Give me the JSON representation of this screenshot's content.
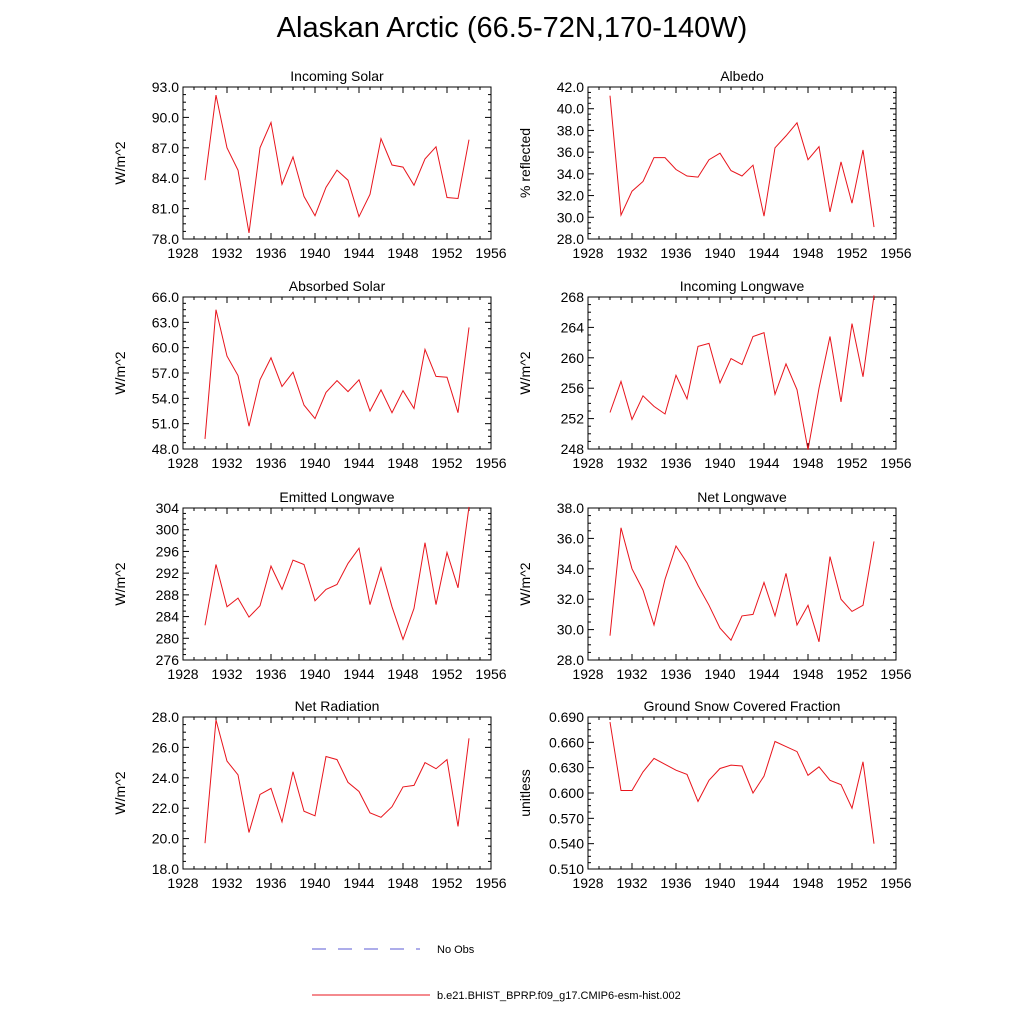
{
  "page": {
    "title": "Alaskan Arctic (66.5-72N,170-140W)"
  },
  "colors": {
    "model_line": "#e8141c",
    "obs_line": "#5b5bd6",
    "axis": "#000000"
  },
  "legend": {
    "obs_label": "No Obs",
    "model_label": "b.e21.BHIST_BPRP.f09_g17.CMIP6-esm-hist.002"
  },
  "chart_data": [
    {
      "type": "line",
      "title": "Incoming Solar",
      "ylabel": "W/m^2",
      "xlim": [
        1928,
        1956
      ],
      "ylim": [
        78,
        93
      ],
      "yticks": [
        "78.0",
        "81.0",
        "84.0",
        "87.0",
        "90.0",
        "93.0"
      ],
      "xticks": [
        "1928",
        "1932",
        "1936",
        "1940",
        "1944",
        "1948",
        "1952",
        "1956"
      ],
      "x": [
        1930,
        1931,
        1932,
        1933,
        1934,
        1935,
        1936,
        1937,
        1938,
        1939,
        1940,
        1941,
        1942,
        1943,
        1944,
        1945,
        1946,
        1947,
        1948,
        1949,
        1950,
        1951,
        1952,
        1953,
        1954
      ],
      "series": [
        {
          "name": "b.e21.BHIST_BPRP.f09_g17.CMIP6-esm-hist.002",
          "values": [
            83.8,
            92.2,
            87.0,
            84.8,
            78.6,
            87.0,
            89.5,
            83.4,
            86.1,
            82.2,
            80.3,
            83.1,
            84.8,
            83.8,
            80.2,
            82.4,
            87.9,
            85.3,
            85.1,
            83.3,
            85.9,
            87.1,
            82.1,
            82.0,
            87.8
          ]
        }
      ]
    },
    {
      "type": "line",
      "title": "Albedo",
      "ylabel": "% reflected",
      "xlim": [
        1928,
        1956
      ],
      "ylim": [
        28,
        42
      ],
      "yticks": [
        "28.0",
        "30.0",
        "32.0",
        "34.0",
        "36.0",
        "38.0",
        "40.0",
        "42.0"
      ],
      "xticks": [
        "1928",
        "1932",
        "1936",
        "1940",
        "1944",
        "1948",
        "1952",
        "1956"
      ],
      "x": [
        1930,
        1931,
        1932,
        1933,
        1934,
        1935,
        1936,
        1937,
        1938,
        1939,
        1940,
        1941,
        1942,
        1943,
        1944,
        1945,
        1946,
        1947,
        1948,
        1949,
        1950,
        1951,
        1952,
        1953,
        1954
      ],
      "series": [
        {
          "name": "b.e21.BHIST_BPRP.f09_g17.CMIP6-esm-hist.002",
          "values": [
            41.2,
            30.2,
            32.4,
            33.3,
            35.5,
            35.5,
            34.4,
            33.8,
            33.7,
            35.3,
            35.9,
            34.3,
            33.8,
            34.8,
            30.1,
            36.4,
            37.5,
            38.7,
            35.3,
            36.5,
            30.5,
            35.1,
            31.3,
            36.2,
            29.1
          ]
        }
      ]
    },
    {
      "type": "line",
      "title": "Absorbed Solar",
      "ylabel": "W/m^2",
      "xlim": [
        1928,
        1956
      ],
      "ylim": [
        48,
        66
      ],
      "yticks": [
        "48.0",
        "51.0",
        "54.0",
        "57.0",
        "60.0",
        "63.0",
        "66.0"
      ],
      "xticks": [
        "1928",
        "1932",
        "1936",
        "1940",
        "1944",
        "1948",
        "1952",
        "1956"
      ],
      "x": [
        1930,
        1931,
        1932,
        1933,
        1934,
        1935,
        1936,
        1937,
        1938,
        1939,
        1940,
        1941,
        1942,
        1943,
        1944,
        1945,
        1946,
        1947,
        1948,
        1949,
        1950,
        1951,
        1952,
        1953,
        1954
      ],
      "series": [
        {
          "name": "b.e21.BHIST_BPRP.f09_g17.CMIP6-esm-hist.002",
          "values": [
            49.2,
            64.5,
            59.0,
            56.7,
            50.7,
            56.2,
            58.8,
            55.4,
            57.1,
            53.2,
            51.6,
            54.7,
            56.1,
            54.8,
            56.2,
            52.5,
            55.0,
            52.3,
            54.9,
            52.8,
            59.8,
            56.6,
            56.5,
            52.3,
            62.4
          ]
        }
      ]
    },
    {
      "type": "line",
      "title": "Incoming Longwave",
      "ylabel": "W/m^2",
      "xlim": [
        1928,
        1956
      ],
      "ylim": [
        248,
        268
      ],
      "yticks": [
        "248",
        "252",
        "256",
        "260",
        "264",
        "268"
      ],
      "xticks": [
        "1928",
        "1932",
        "1936",
        "1940",
        "1944",
        "1948",
        "1952",
        "1956"
      ],
      "x": [
        1930,
        1931,
        1932,
        1933,
        1934,
        1935,
        1936,
        1937,
        1938,
        1939,
        1940,
        1941,
        1942,
        1943,
        1944,
        1945,
        1946,
        1947,
        1948,
        1949,
        1950,
        1951,
        1952,
        1953,
        1954
      ],
      "series": [
        {
          "name": "b.e21.BHIST_BPRP.f09_g17.CMIP6-esm-hist.002",
          "values": [
            252.8,
            256.9,
            251.9,
            255.0,
            253.6,
            252.6,
            257.7,
            254.6,
            261.5,
            261.9,
            256.7,
            259.9,
            259.1,
            262.8,
            263.3,
            255.2,
            259.2,
            255.8,
            247.9,
            256.0,
            262.8,
            254.2,
            264.5,
            257.5,
            268.2
          ]
        }
      ]
    },
    {
      "type": "line",
      "title": "Emitted Longwave",
      "ylabel": "W/m^2",
      "xlim": [
        1928,
        1956
      ],
      "ylim": [
        276,
        304
      ],
      "yticks": [
        "276",
        "280",
        "284",
        "288",
        "292",
        "296",
        "300",
        "304"
      ],
      "xticks": [
        "1928",
        "1932",
        "1936",
        "1940",
        "1944",
        "1948",
        "1952",
        "1956"
      ],
      "x": [
        1930,
        1931,
        1932,
        1933,
        1934,
        1935,
        1936,
        1937,
        1938,
        1939,
        1940,
        1941,
        1942,
        1943,
        1944,
        1945,
        1946,
        1947,
        1948,
        1949,
        1950,
        1951,
        1952,
        1953,
        1954
      ],
      "series": [
        {
          "name": "b.e21.BHIST_BPRP.f09_g17.CMIP6-esm-hist.002",
          "values": [
            282.4,
            293.6,
            285.8,
            287.4,
            283.9,
            286.0,
            293.3,
            289.0,
            294.4,
            293.6,
            286.9,
            289.0,
            289.9,
            293.8,
            296.6,
            286.2,
            293.0,
            285.8,
            279.8,
            285.5,
            297.6,
            286.2,
            295.8,
            289.3,
            304.2
          ]
        }
      ]
    },
    {
      "type": "line",
      "title": "Net Longwave",
      "ylabel": "W/m^2",
      "xlim": [
        1928,
        1956
      ],
      "ylim": [
        28,
        38
      ],
      "yticks": [
        "28.0",
        "30.0",
        "32.0",
        "34.0",
        "36.0",
        "38.0"
      ],
      "xticks": [
        "1928",
        "1932",
        "1936",
        "1940",
        "1944",
        "1948",
        "1952",
        "1956"
      ],
      "x": [
        1930,
        1931,
        1932,
        1933,
        1934,
        1935,
        1936,
        1937,
        1938,
        1939,
        1940,
        1941,
        1942,
        1943,
        1944,
        1945,
        1946,
        1947,
        1948,
        1949,
        1950,
        1951,
        1952,
        1953,
        1954
      ],
      "series": [
        {
          "name": "b.e21.BHIST_BPRP.f09_g17.CMIP6-esm-hist.002",
          "values": [
            29.6,
            36.7,
            34.0,
            32.6,
            30.3,
            33.3,
            35.5,
            34.4,
            32.9,
            31.6,
            30.1,
            29.3,
            30.9,
            31.0,
            33.1,
            30.9,
            33.7,
            30.3,
            31.6,
            29.2,
            34.8,
            32.0,
            31.2,
            31.6,
            35.8
          ]
        }
      ]
    },
    {
      "type": "line",
      "title": "Net Radiation",
      "ylabel": "W/m^2",
      "xlim": [
        1928,
        1956
      ],
      "ylim": [
        18,
        28
      ],
      "yticks": [
        "18.0",
        "20.0",
        "22.0",
        "24.0",
        "26.0",
        "28.0"
      ],
      "xticks": [
        "1928",
        "1932",
        "1936",
        "1940",
        "1944",
        "1948",
        "1952",
        "1956"
      ],
      "x": [
        1930,
        1931,
        1932,
        1933,
        1934,
        1935,
        1936,
        1937,
        1938,
        1939,
        1940,
        1941,
        1942,
        1943,
        1944,
        1945,
        1946,
        1947,
        1948,
        1949,
        1950,
        1951,
        1952,
        1953,
        1954
      ],
      "series": [
        {
          "name": "b.e21.BHIST_BPRP.f09_g17.CMIP6-esm-hist.002",
          "values": [
            19.7,
            27.8,
            25.1,
            24.2,
            20.4,
            22.9,
            23.3,
            21.1,
            24.4,
            21.8,
            21.5,
            25.4,
            25.2,
            23.7,
            23.1,
            21.7,
            21.4,
            22.1,
            23.4,
            23.5,
            25.0,
            24.6,
            25.2,
            20.8,
            26.6
          ]
        }
      ]
    },
    {
      "type": "line",
      "title": "Ground Snow Covered Fraction",
      "ylabel": "unitless",
      "xlim": [
        1928,
        1956
      ],
      "ylim": [
        0.51,
        0.69
      ],
      "yticks": [
        "0.510",
        "0.540",
        "0.570",
        "0.600",
        "0.630",
        "0.660",
        "0.690"
      ],
      "xticks": [
        "1928",
        "1932",
        "1936",
        "1940",
        "1944",
        "1948",
        "1952",
        "1956"
      ],
      "x": [
        1930,
        1931,
        1932,
        1933,
        1934,
        1935,
        1936,
        1937,
        1938,
        1939,
        1940,
        1941,
        1942,
        1943,
        1944,
        1945,
        1946,
        1947,
        1948,
        1949,
        1950,
        1951,
        1952,
        1953,
        1954
      ],
      "series": [
        {
          "name": "b.e21.BHIST_BPRP.f09_g17.CMIP6-esm-hist.002",
          "values": [
            0.684,
            0.603,
            0.603,
            0.625,
            0.641,
            0.634,
            0.627,
            0.622,
            0.59,
            0.615,
            0.629,
            0.633,
            0.632,
            0.6,
            0.62,
            0.661,
            0.655,
            0.649,
            0.621,
            0.631,
            0.615,
            0.61,
            0.582,
            0.637,
            0.54
          ]
        }
      ]
    }
  ]
}
